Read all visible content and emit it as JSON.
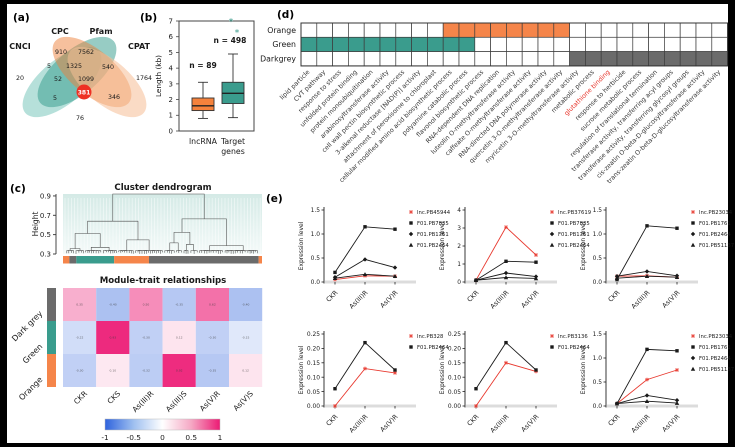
{
  "panels": {
    "a": "(a)",
    "b": "(b)",
    "c": "(c)",
    "d": "(d)",
    "e": "(e)"
  },
  "colors": {
    "teal": "#3a9c8d",
    "orange": "#f5854a",
    "darkgrey": "#6b6b6b",
    "red": "#e8392f",
    "black": "#1a1a1a",
    "heat_pos": "#ec1a74",
    "heat_neg": "#2f63dd"
  },
  "chart_data": [
    {
      "type": "venn",
      "sets": [
        "CNCI",
        "CPC",
        "Pfam",
        "CPAT"
      ],
      "regions": [
        {
          "sets": [
            "CNCI"
          ],
          "value": "20"
        },
        {
          "sets": [
            "CPC"
          ],
          "value": "910"
        },
        {
          "sets": [
            "Pfam"
          ],
          "value": "7562"
        },
        {
          "sets": [
            "CPAT"
          ],
          "value": "1764"
        },
        {
          "sets": [
            "CNCI",
            "CPC"
          ],
          "value": "5"
        },
        {
          "sets": [
            "CPC",
            "Pfam"
          ],
          "value": "1325"
        },
        {
          "sets": [
            "Pfam",
            "CPAT"
          ],
          "value": "540"
        },
        {
          "sets": [
            "CNCI",
            "CPC",
            "Pfam"
          ],
          "value": "52"
        },
        {
          "sets": [
            "CPC",
            "Pfam",
            "CPAT"
          ],
          "value": "1099"
        },
        {
          "sets": [
            "CNCI",
            "CPC",
            "Pfam",
            "CPAT"
          ],
          "value": "381",
          "highlight": true
        },
        {
          "sets": [
            "CNCI",
            "Pfam"
          ],
          "value": "5"
        },
        {
          "sets": [
            "CNCI",
            "Pfam",
            "CPAT"
          ],
          "value": "346"
        },
        {
          "sets": [
            "CNCI",
            "CPAT"
          ],
          "value": "76"
        }
      ]
    },
    {
      "type": "box",
      "ylabel": "Length (kb)",
      "ylim": [
        0,
        7
      ],
      "yticks": [
        "0",
        "1",
        "2",
        "3",
        "4",
        "5",
        "6",
        "7"
      ],
      "groups": [
        {
          "label": "lncRNA",
          "label2": "",
          "n_label": "n = 89",
          "color": "#f5823c",
          "whisker_low": 0.8,
          "q1": 1.3,
          "median": 1.6,
          "q3": 2.1,
          "whisker_high": 3.1,
          "outliers": []
        },
        {
          "label": "Target",
          "label2": "genes",
          "n_label": "n = 498",
          "color": "#3a9c8d",
          "whisker_low": 0.85,
          "q1": 1.75,
          "median": 2.4,
          "q3": 3.1,
          "whisker_high": 4.9,
          "outliers": [
            6.2,
            6.9
          ]
        }
      ]
    },
    {
      "type": "heatmap",
      "name": "go-term-grid",
      "rows": [
        "Orange",
        "Green",
        "Darkgrey"
      ],
      "columns": [
        "lipid particle",
        "CVT pathway",
        "response to stress",
        "unfolded protein binding",
        "protein monoubiquitination",
        "arabinosyltransferase activity",
        "cell wall pectin biosynthetic process",
        "3-alkenal reductase [NAD(P)] activity",
        "attachment of peroxisome to chloroplast",
        "cellular modified amino acid biosynthetic process",
        "polyamine catabolic process",
        "flavonol biosynthetic process",
        "RNA-dependent DNA replication",
        "luteolin O-methyltransferase activity",
        "caffeate O-methyltransferase activity",
        "RNA-directed DNA polymerase activity",
        "quercetin 3-O-methyltransferase activity",
        "myricetin 3-O-methyltransferase activity",
        "metabolic process",
        "glutathione binding",
        "response to herbicide",
        "sucrose metabolic process",
        "regulation of translational termination",
        "transferase activity, transferring acyl groups",
        "transferase activity, transferring glycosyl groups",
        "cis-zeatin O-beta-D-glucosyltransferase activity",
        "trans-zeatin O-beta-D-glucosyltransferase activity"
      ],
      "filled_columns": {
        "Orange": [
          10,
          17
        ],
        "Green": [
          1,
          11
        ],
        "Darkgrey": [
          18,
          27
        ]
      },
      "highlighted_column": "glutathione binding"
    },
    {
      "type": "dendrogram",
      "title": "Cluster dendrogram",
      "ylabel": "Height",
      "yticks": [
        "0.9",
        "0.7",
        "0.5",
        "0.3"
      ],
      "ylim": [
        0.3,
        0.92
      ],
      "module_bar": [
        {
          "color": "orange",
          "fraction": 0.032
        },
        {
          "color": "darkgrey",
          "fraction": 0.035
        },
        {
          "color": "teal",
          "fraction": 0.19
        },
        {
          "color": "orange",
          "fraction": 0.175
        },
        {
          "color": "darkgrey",
          "fraction": 0.551
        },
        {
          "color": "orange",
          "fraction": 0.017
        }
      ]
    },
    {
      "type": "heatmap",
      "title": "Module-trait relationships",
      "rows": [
        "Dark grey",
        "Green",
        "Orange"
      ],
      "row_colors": [
        "#6b6b6b",
        "#3a9c8d",
        "#f5854a"
      ],
      "columns": [
        "CKR",
        "CKS",
        "As(III)R",
        "As(III)S",
        "As(V)R",
        "As(V)S"
      ],
      "values": [
        [
          0.35,
          -0.4,
          0.5,
          -0.35,
          0.62,
          -0.4
        ],
        [
          -0.22,
          0.93,
          -0.3,
          0.12,
          -0.3,
          -0.15
        ],
        [
          -0.3,
          0.1,
          -0.32,
          0.92,
          -0.35,
          0.12
        ]
      ],
      "colorbar_ticks": [
        "-1",
        "-0.5",
        "0",
        "0.5",
        "1"
      ]
    },
    {
      "type": "line",
      "name": "expression-profiles",
      "x_categories": [
        "CKR",
        "As(III)R",
        "As(V)R"
      ],
      "ylabel": "Expression level",
      "subplots": [
        {
          "ymax": 1.5,
          "yticks": [
            "0.0",
            "0.5",
            "1.0",
            "1.5"
          ],
          "series": [
            {
              "name": "lnc.PB45944",
              "color": "red",
              "marker": "star",
              "values": [
                0.05,
                0.13,
                0.12
              ]
            },
            {
              "name": "F01.PB7835",
              "color": "black",
              "marker": "square",
              "values": [
                0.2,
                1.15,
                1.1
              ]
            },
            {
              "name": "F01.PB1761",
              "color": "black",
              "marker": "diamond",
              "values": [
                0.1,
                0.47,
                0.3
              ]
            },
            {
              "name": "F01.PB2464",
              "color": "black",
              "marker": "triangle",
              "values": [
                0.08,
                0.16,
                0.12
              ]
            }
          ]
        },
        {
          "ymax": 4,
          "yticks": [
            "0",
            "1",
            "2",
            "3",
            "4"
          ],
          "series": [
            {
              "name": "lnc.PB37619",
              "color": "red",
              "marker": "star",
              "values": [
                0.1,
                3.05,
                1.5
              ]
            },
            {
              "name": "F01.PB7835",
              "color": "black",
              "marker": "square",
              "values": [
                0.1,
                1.15,
                1.1
              ]
            },
            {
              "name": "F01.PB1761",
              "color": "black",
              "marker": "diamond",
              "values": [
                0.1,
                0.5,
                0.3
              ]
            },
            {
              "name": "F01.PB2464",
              "color": "black",
              "marker": "triangle",
              "values": [
                0.1,
                0.25,
                0.2
              ]
            }
          ]
        },
        {
          "ymax": 1.5,
          "yticks": [
            "0.0",
            "0.5",
            "1.0",
            "1.5"
          ],
          "series": [
            {
              "name": "lnc.PB23034",
              "color": "red",
              "marker": "star",
              "values": [
                0.12,
                0.13,
                0.1
              ]
            },
            {
              "name": "F01.PB1761",
              "color": "black",
              "marker": "square",
              "values": [
                0.05,
                1.17,
                1.12
              ]
            },
            {
              "name": "F01.PB2464",
              "color": "black",
              "marker": "diamond",
              "values": [
                0.12,
                0.22,
                0.13
              ]
            },
            {
              "name": "F01.PB51137",
              "color": "black",
              "marker": "triangle",
              "values": [
                0.08,
                0.12,
                0.1
              ]
            }
          ]
        },
        {
          "ymax": 0.25,
          "yticks": [
            "0.00",
            "0.05",
            "0.10",
            "0.15",
            "0.20",
            "0.25"
          ],
          "series": [
            {
              "name": "lnc.PB328",
              "color": "red",
              "marker": "star",
              "values": [
                0.0,
                0.13,
                0.115
              ]
            },
            {
              "name": "F01.PB2464",
              "color": "black",
              "marker": "square",
              "values": [
                0.06,
                0.22,
                0.125
              ]
            }
          ]
        },
        {
          "ymax": 0.25,
          "yticks": [
            "0.00",
            "0.05",
            "0.10",
            "0.15",
            "0.20",
            "0.25"
          ],
          "series": [
            {
              "name": "lnc.PB3136",
              "color": "red",
              "marker": "star",
              "values": [
                0.0,
                0.15,
                0.12
              ]
            },
            {
              "name": "F01.PB2464",
              "color": "black",
              "marker": "square",
              "values": [
                0.06,
                0.22,
                0.125
              ]
            }
          ]
        },
        {
          "ymax": 1.5,
          "yticks": [
            "0.0",
            "0.5",
            "1.0",
            "1.5"
          ],
          "series": [
            {
              "name": "lnc.PB23034",
              "color": "red",
              "marker": "star",
              "values": [
                0.05,
                0.55,
                0.75
              ]
            },
            {
              "name": "F01.PB1761",
              "color": "black",
              "marker": "square",
              "values": [
                0.05,
                1.18,
                1.15
              ]
            },
            {
              "name": "F01.PB2464",
              "color": "black",
              "marker": "diamond",
              "values": [
                0.05,
                0.22,
                0.12
              ]
            },
            {
              "name": "F01.PB51137",
              "color": "black",
              "marker": "triangle",
              "values": [
                0.05,
                0.1,
                0.06
              ]
            }
          ]
        }
      ]
    }
  ]
}
